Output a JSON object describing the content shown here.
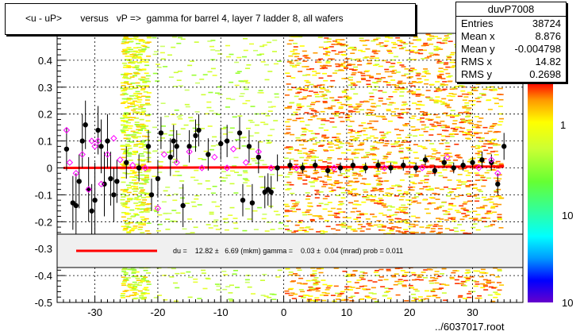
{
  "title": "<u - uP>       versus   vP =>  gamma for barrel 4, layer 7 ladder 8, all wafers",
  "stats": {
    "name": "duvP7008",
    "rows": [
      {
        "key": "Entries",
        "value": "38724"
      },
      {
        "key": "Mean x",
        "value": "8.876"
      },
      {
        "key": "Mean y",
        "value": "-0.004798"
      },
      {
        "key": "RMS x",
        "value": "14.82"
      },
      {
        "key": "RMS y",
        "value": "0.2698"
      }
    ]
  },
  "fit_legend": "du =    12.82 ±   6.69 (mkm) gamma =    0.03 ±  0.04 (mrad) prob = 0.011",
  "footer": "../6037017.root",
  "colors": {
    "fit_line": "#ff0000",
    "points": "#000000",
    "open_markers": "#ff00ff",
    "legend_bg": "#f0f0f0"
  },
  "chart_data": {
    "type": "scatter",
    "title": "<u - uP>       versus   vP =>  gamma for barrel 4, layer 7 ladder 8, all wafers",
    "xlim": [
      -36,
      38
    ],
    "ylim": [
      -0.5,
      0.5
    ],
    "x_ticks": [
      -30,
      -20,
      -10,
      0,
      10,
      20,
      30
    ],
    "x_tick_labels": [
      "-30",
      "-20",
      "-10",
      "0",
      "10",
      "20",
      "30"
    ],
    "y_ticks": [
      -0.5,
      -0.4,
      -0.3,
      -0.2,
      -0.1,
      0,
      0.1,
      0.2,
      0.3,
      0.4
    ],
    "y_tick_labels": [
      "-0.5",
      "-0.4",
      "-0.3",
      "-0.2",
      "-0.1",
      "0",
      "0.1",
      "0.2",
      "0.3",
      "0.4"
    ],
    "colorbar_labels": [
      "1",
      "10",
      "10"
    ],
    "grid": true,
    "fit_line": {
      "x": [
        -35,
        35
      ],
      "y": [
        0.0,
        0.005
      ]
    },
    "density_regions": [
      {
        "x": [
          -26,
          -21
        ],
        "density": "medium"
      },
      {
        "x": [
          -21,
          0
        ],
        "density": "low"
      },
      {
        "x": [
          0,
          35
        ],
        "density": "high"
      }
    ],
    "profile_points": [
      {
        "x": -34.5,
        "y": 0.07,
        "err": 0.08
      },
      {
        "x": -33.5,
        "y": -0.13,
        "err": 0.1
      },
      {
        "x": -33,
        "y": -0.14,
        "err": 0.12
      },
      {
        "x": -32.5,
        "y": -0.05,
        "err": 0.1
      },
      {
        "x": -32,
        "y": 0.1,
        "err": 0.1
      },
      {
        "x": -31.5,
        "y": 0.16,
        "err": 0.09
      },
      {
        "x": -31,
        "y": -0.08,
        "err": 0.12
      },
      {
        "x": -30.5,
        "y": -0.16,
        "err": 0.1
      },
      {
        "x": -30,
        "y": -0.12,
        "err": 0.14
      },
      {
        "x": -29.5,
        "y": 0.14,
        "err": 0.09
      },
      {
        "x": -29,
        "y": 0.08,
        "err": 0.1
      },
      {
        "x": -28.5,
        "y": -0.06,
        "err": 0.12
      },
      {
        "x": -28,
        "y": 0.1,
        "err": 0.1
      },
      {
        "x": -27.5,
        "y": -0.04,
        "err": 0.1
      },
      {
        "x": -27,
        "y": -0.1,
        "err": 0.1
      },
      {
        "x": -26.5,
        "y": -0.05,
        "err": 0.08
      },
      {
        "x": -25,
        "y": 0.02,
        "err": 0.06
      },
      {
        "x": -23,
        "y": 0.0,
        "err": 0.05
      },
      {
        "x": -21.5,
        "y": 0.08,
        "err": 0.06
      },
      {
        "x": -21,
        "y": -0.1,
        "err": 0.06
      },
      {
        "x": -20,
        "y": -0.04,
        "err": 0.07
      },
      {
        "x": -19.5,
        "y": 0.13,
        "err": 0.06
      },
      {
        "x": -18,
        "y": 0.04,
        "err": 0.07
      },
      {
        "x": -17.5,
        "y": 0.1,
        "err": 0.06
      },
      {
        "x": -17,
        "y": 0.08,
        "err": 0.06
      },
      {
        "x": -16,
        "y": -0.14,
        "err": 0.08
      },
      {
        "x": -15,
        "y": 0.08,
        "err": 0.06
      },
      {
        "x": -14,
        "y": 0.12,
        "err": 0.06
      },
      {
        "x": -13.5,
        "y": 0.14,
        "err": 0.06
      },
      {
        "x": -12,
        "y": 0.05,
        "err": 0.06
      },
      {
        "x": -10,
        "y": 0.09,
        "err": 0.06
      },
      {
        "x": -9,
        "y": 0.1,
        "err": 0.06
      },
      {
        "x": -7,
        "y": 0.13,
        "err": 0.06
      },
      {
        "x": -6.5,
        "y": -0.12,
        "err": 0.06
      },
      {
        "x": -5.5,
        "y": 0.08,
        "err": 0.06
      },
      {
        "x": -5,
        "y": -0.13,
        "err": 0.07
      },
      {
        "x": -4,
        "y": 0.04,
        "err": 0.06
      },
      {
        "x": -3,
        "y": -0.09,
        "err": 0.06
      },
      {
        "x": -2.5,
        "y": -0.08,
        "err": 0.06
      },
      {
        "x": -2,
        "y": -0.09,
        "err": 0.06
      },
      {
        "x": -1,
        "y": 0.0,
        "err": 0.05
      },
      {
        "x": 1,
        "y": 0.01,
        "err": 0.02
      },
      {
        "x": 3,
        "y": 0.0,
        "err": 0.02
      },
      {
        "x": 5,
        "y": 0.01,
        "err": 0.02
      },
      {
        "x": 7,
        "y": -0.01,
        "err": 0.02
      },
      {
        "x": 9,
        "y": 0.0,
        "err": 0.02
      },
      {
        "x": 11,
        "y": 0.01,
        "err": 0.02
      },
      {
        "x": 13,
        "y": 0.0,
        "err": 0.02
      },
      {
        "x": 15,
        "y": 0.01,
        "err": 0.02
      },
      {
        "x": 17,
        "y": 0.0,
        "err": 0.02
      },
      {
        "x": 19,
        "y": 0.01,
        "err": 0.02
      },
      {
        "x": 21,
        "y": 0.0,
        "err": 0.02
      },
      {
        "x": 22.5,
        "y": 0.03,
        "err": 0.02
      },
      {
        "x": 24,
        "y": -0.01,
        "err": 0.02
      },
      {
        "x": 25.5,
        "y": 0.02,
        "err": 0.02
      },
      {
        "x": 27,
        "y": 0.0,
        "err": 0.02
      },
      {
        "x": 28.5,
        "y": 0.01,
        "err": 0.02
      },
      {
        "x": 30,
        "y": 0.02,
        "err": 0.02
      },
      {
        "x": 31.5,
        "y": 0.03,
        "err": 0.03
      },
      {
        "x": 33,
        "y": 0.02,
        "err": 0.03
      },
      {
        "x": 34,
        "y": -0.06,
        "err": 0.04
      },
      {
        "x": 35,
        "y": 0.08,
        "err": 0.05
      }
    ],
    "open_points": [
      {
        "x": -34.5,
        "y": 0.14
      },
      {
        "x": -34,
        "y": 0.02
      },
      {
        "x": -33,
        "y": -0.02
      },
      {
        "x": -32,
        "y": 0.05
      },
      {
        "x": -31,
        "y": -0.08
      },
      {
        "x": -30.5,
        "y": 0.1
      },
      {
        "x": -30,
        "y": 0.08
      },
      {
        "x": -29.5,
        "y": 0.1
      },
      {
        "x": -29,
        "y": -0.06
      },
      {
        "x": -28,
        "y": 0.05
      },
      {
        "x": -27,
        "y": 0.11
      },
      {
        "x": -26,
        "y": 0.03
      },
      {
        "x": -24,
        "y": 0.01
      },
      {
        "x": -22,
        "y": 0.0
      },
      {
        "x": -20,
        "y": -0.15
      },
      {
        "x": -19,
        "y": 0.05
      },
      {
        "x": -17,
        "y": 0.02
      },
      {
        "x": -15,
        "y": 0.06
      },
      {
        "x": -13,
        "y": 0.0
      },
      {
        "x": -11,
        "y": 0.04
      },
      {
        "x": -9,
        "y": 0.0
      },
      {
        "x": -8,
        "y": 0.07
      },
      {
        "x": -6,
        "y": 0.02
      },
      {
        "x": -4,
        "y": 0.06
      },
      {
        "x": -2,
        "y": 0.0
      },
      {
        "x": 2,
        "y": 0.0
      },
      {
        "x": 8,
        "y": 0.0
      },
      {
        "x": 16,
        "y": 0.0
      },
      {
        "x": 22,
        "y": 0.0
      },
      {
        "x": 26,
        "y": 0.04
      },
      {
        "x": 31,
        "y": 0.0
      },
      {
        "x": 33,
        "y": 0.03
      },
      {
        "x": 34,
        "y": -0.02
      }
    ]
  }
}
